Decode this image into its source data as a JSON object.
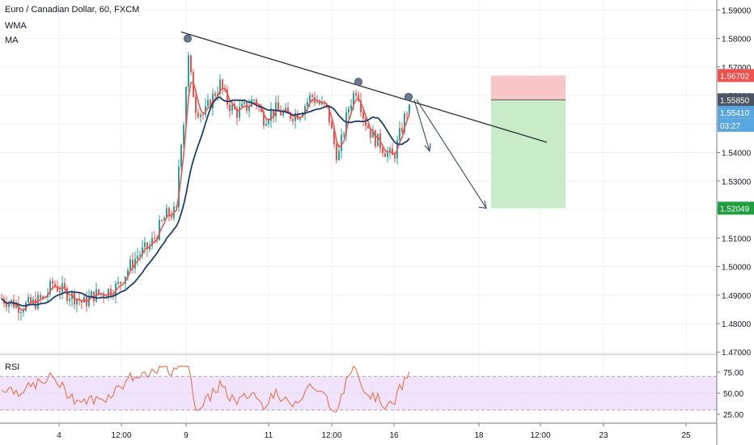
{
  "legend": {
    "symbol": "Euro / Canadian Dollar, 60, FXCM",
    "wma": "WMA",
    "ma": "MA",
    "rsi": "RSI"
  },
  "colors": {
    "up": "#26a69a",
    "down": "#ef5350",
    "wma": "#ef5350",
    "ma": "#1e3f6e",
    "trendline": "#2a2e39",
    "rsi_line": "#e8734a",
    "rsi_band": "#f0e3fb",
    "stop_zone": "#f8c6c6",
    "target_zone": "#c8ebc8"
  },
  "chart_data": {
    "type": "candlestick",
    "x_ticks": [
      "4",
      "12:00",
      "9",
      "11",
      "12:00",
      "16",
      "18",
      "12:00",
      "23",
      "25"
    ],
    "y_ticks": [
      "1.47000",
      "1.48000",
      "1.49000",
      "1.50000",
      "1.51000",
      "1.52000",
      "1.53000",
      "1.54000",
      "1.55000",
      "1.56000",
      "1.57000",
      "1.58000",
      "1.59000"
    ],
    "ylim": [
      1.4695,
      1.5935
    ],
    "price_labels": [
      {
        "value": "1.56702",
        "role": "stop"
      },
      {
        "value": "1.55850",
        "role": "entry"
      },
      {
        "value": "1.55410",
        "role": "last"
      },
      {
        "value": "03:27",
        "role": "countdown"
      },
      {
        "value": "1.52049",
        "role": "target"
      }
    ],
    "rsi": {
      "y_ticks": [
        "75.00",
        "50.00",
        "25.00"
      ],
      "upper": 70,
      "lower": 30
    },
    "trendline": [
      1.5823,
      1.5436
    ],
    "projection_arrows": 2,
    "swing_markers": 3
  }
}
